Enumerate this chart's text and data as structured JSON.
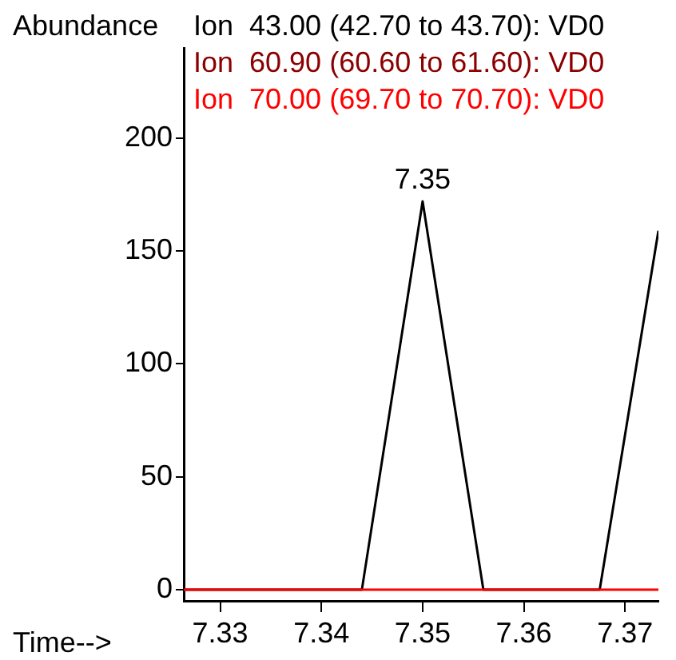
{
  "chart_data": {
    "type": "line",
    "xlabel": "Time-->",
    "ylabel": "Abundance",
    "x": [
      7.3264,
      7.344,
      7.35,
      7.356,
      7.3675,
      7.3733
    ],
    "series": [
      {
        "name": "Ion  43.00 (42.70 to 43.70): VD0",
        "color": "#000000",
        "values": [
          0,
          0,
          172,
          0,
          0,
          159
        ]
      },
      {
        "name": "Ion  60.90 (60.60 to 61.60): VD0",
        "color": "#8b0000",
        "values": [
          null,
          null,
          null,
          null,
          null,
          null
        ]
      },
      {
        "name": "Ion  70.00 (69.70 to 70.70): VD0",
        "color": "#ff0000",
        "values": [
          0,
          0,
          0,
          0,
          0,
          0
        ]
      }
    ],
    "annotations": [
      {
        "text": "7.35",
        "x": 7.35,
        "y": 172
      }
    ],
    "xlim": [
      7.3264,
      7.3733
    ],
    "xticks": [
      7.33,
      7.34,
      7.35,
      7.36,
      7.37
    ],
    "ylim": [
      -5,
      240
    ],
    "yticks": [
      0,
      50,
      100,
      150,
      200
    ],
    "grid": false,
    "legend": "top",
    "marker": "none",
    "line_style": "solid"
  }
}
